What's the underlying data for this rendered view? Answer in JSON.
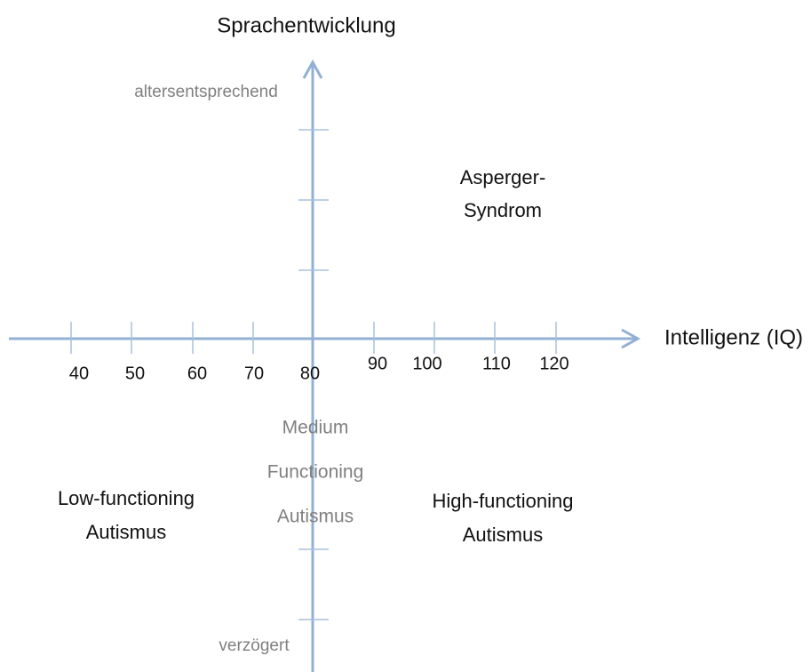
{
  "axes": {
    "y_label": "Sprachentwicklung",
    "x_label": "Intelligenz (IQ)",
    "y_top": "altersentsprechend",
    "y_bottom": "verzögert",
    "x_ticks": [
      40,
      50,
      60,
      70,
      80,
      90,
      100,
      110,
      120
    ]
  },
  "regions": [
    {
      "lines": [
        "Asperger-",
        "Syndrom"
      ]
    },
    {
      "lines": [
        "Medium",
        "Functioning",
        "Autismus"
      ]
    },
    {
      "lines": [
        "Low-functioning",
        "Autismus"
      ]
    },
    {
      "lines": [
        "High-functioning",
        "Autismus"
      ]
    }
  ]
}
